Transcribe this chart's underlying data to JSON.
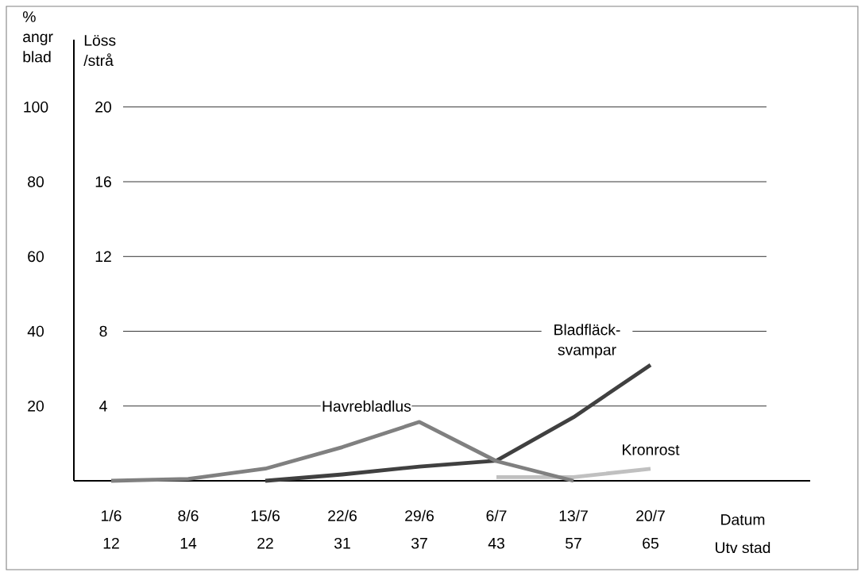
{
  "chart_data": {
    "type": "line",
    "ylabel": "% angr blad",
    "y2label": "Löss /strå",
    "xlabel": "Datum",
    "annotations": [
      "Utv stad"
    ],
    "categories": [
      "1/6 12",
      "8/6 14",
      "15/6 22",
      "22/6 31",
      "29/6 37",
      "6/7 43",
      "13/7 57",
      "20/7 65"
    ],
    "ylim": [
      0,
      118
    ],
    "yticks": [
      20,
      40,
      60,
      80,
      100
    ],
    "y2lim": [
      0,
      23.6
    ],
    "y2ticks": [
      4,
      8,
      12,
      16,
      20
    ],
    "grid": "y",
    "series": [
      {
        "name": "Havrebladlus",
        "color": "#808080",
        "axis": "y2",
        "values": [
          0,
          0.1,
          0.65,
          1.8,
          3.15,
          1.05,
          0,
          null
        ]
      },
      {
        "name": "Bladfläck-svampar",
        "color": "#404040",
        "values": [
          null,
          null,
          0,
          1.7,
          3.8,
          5.4,
          17,
          31
        ]
      },
      {
        "name": "Kronrost",
        "color": "#c0c0c0",
        "values": [
          null,
          null,
          null,
          null,
          null,
          1,
          1,
          3.2
        ]
      }
    ]
  }
}
